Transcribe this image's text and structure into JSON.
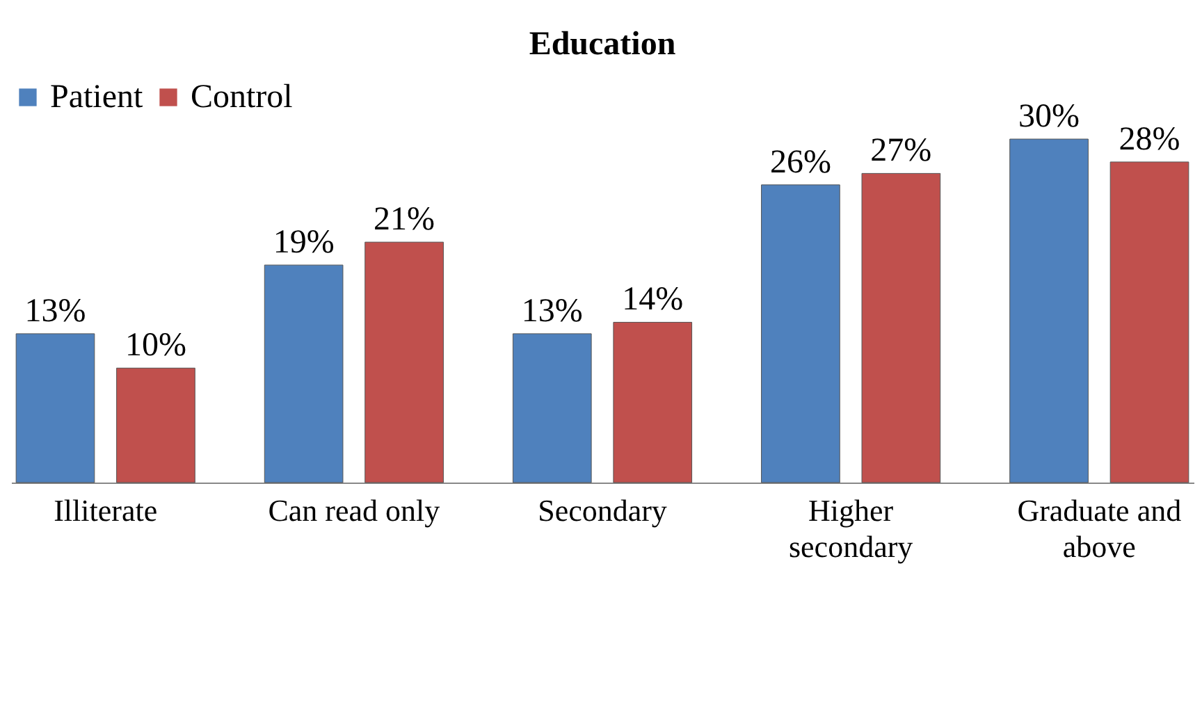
{
  "chart_data": {
    "type": "bar",
    "title": "Education",
    "categories": [
      "Illiterate",
      "Can read only",
      "Secondary",
      "Higher secondary",
      "Graduate and above"
    ],
    "series": [
      {
        "name": "Patient",
        "color": "#4f81bd",
        "values": [
          13,
          19,
          13,
          26,
          30
        ],
        "value_labels": [
          "13%",
          "19%",
          "13%",
          "26%",
          "30%"
        ]
      },
      {
        "name": "Control",
        "color": "#c0504d",
        "values": [
          10,
          21,
          14,
          27,
          28
        ],
        "value_labels": [
          "10%",
          "21%",
          "14%",
          "27%",
          "28%"
        ]
      }
    ],
    "legend": "top",
    "grid": false
  }
}
